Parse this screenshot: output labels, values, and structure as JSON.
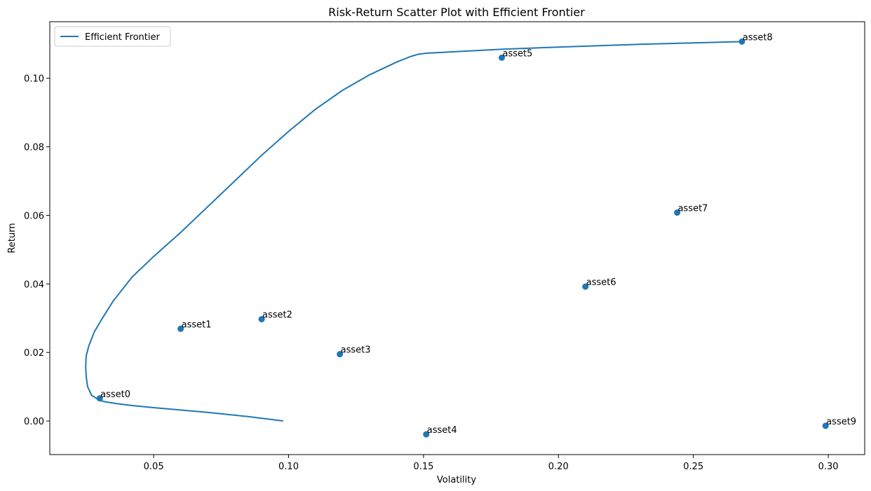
{
  "chart_data": {
    "type": "scatter",
    "title": "Risk-Return Scatter Plot with Efficient Frontier",
    "xlabel": "Volatility",
    "ylabel": "Return",
    "xlim": [
      0.0115,
      0.3135
    ],
    "ylim": [
      -0.0098,
      0.1165
    ],
    "xticks": [
      0.05,
      0.1,
      0.15,
      0.2,
      0.25,
      0.3
    ],
    "xtick_labels": [
      "0.05",
      "0.10",
      "0.15",
      "0.20",
      "0.25",
      "0.30"
    ],
    "yticks": [
      0.0,
      0.02,
      0.04,
      0.06,
      0.08,
      0.1
    ],
    "ytick_labels": [
      "0.00",
      "0.02",
      "0.04",
      "0.06",
      "0.08",
      "0.10"
    ],
    "grid": false,
    "legend": {
      "position": "top-left",
      "entries": [
        "Efficient Frontier"
      ]
    },
    "color": "#1f77b4",
    "points": [
      {
        "label": "asset0",
        "x": 0.03,
        "y": 0.0066
      },
      {
        "label": "asset1",
        "x": 0.06,
        "y": 0.0269
      },
      {
        "label": "asset2",
        "x": 0.09,
        "y": 0.0297
      },
      {
        "label": "asset3",
        "x": 0.119,
        "y": 0.0195
      },
      {
        "label": "asset4",
        "x": 0.151,
        "y": -0.0039
      },
      {
        "label": "asset5",
        "x": 0.179,
        "y": 0.106
      },
      {
        "label": "asset6",
        "x": 0.21,
        "y": 0.0392
      },
      {
        "label": "asset7",
        "x": 0.244,
        "y": 0.0608
      },
      {
        "label": "asset8",
        "x": 0.268,
        "y": 0.1107
      },
      {
        "label": "asset9",
        "x": 0.299,
        "y": -0.0014
      }
    ],
    "frontier": {
      "name": "Efficient Frontier",
      "x": [
        0.098,
        0.085,
        0.07,
        0.06,
        0.05,
        0.042,
        0.036,
        0.032,
        0.03,
        0.027,
        0.0255,
        0.025,
        0.0248,
        0.025,
        0.026,
        0.028,
        0.031,
        0.035,
        0.042,
        0.05,
        0.06,
        0.07,
        0.08,
        0.09,
        0.1,
        0.11,
        0.12,
        0.13,
        0.14,
        0.145,
        0.148,
        0.151,
        0.16,
        0.18,
        0.2,
        0.23,
        0.268
      ],
      "y": [
        0.0,
        0.0013,
        0.0025,
        0.0032,
        0.0039,
        0.0045,
        0.0051,
        0.0056,
        0.006,
        0.0075,
        0.01,
        0.013,
        0.016,
        0.019,
        0.022,
        0.026,
        0.03,
        0.035,
        0.042,
        0.048,
        0.055,
        0.0625,
        0.07,
        0.0775,
        0.0845,
        0.091,
        0.0965,
        0.101,
        0.1047,
        0.1063,
        0.107,
        0.1073,
        0.1077,
        0.1085,
        0.1091,
        0.1099,
        0.1107
      ]
    }
  }
}
